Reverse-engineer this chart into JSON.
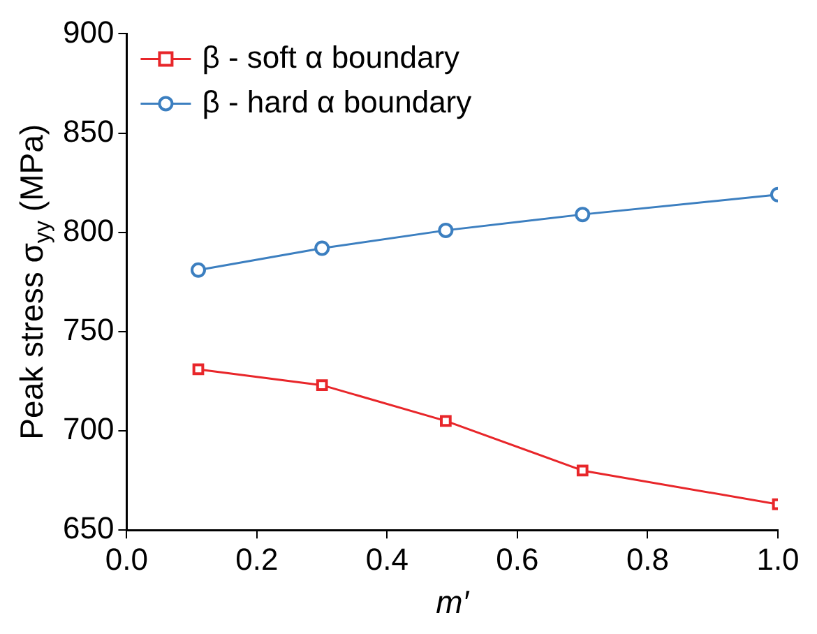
{
  "chart_data": {
    "type": "line",
    "xlabel": "m′",
    "ylabel": "Peak stress σ$_{yy}$ (MPa)",
    "x": [
      0.11,
      0.3,
      0.49,
      0.7,
      1.0
    ],
    "series": [
      {
        "name": "β - soft α boundary",
        "color": "#e8262a",
        "marker": "square",
        "values": [
          731,
          723,
          705,
          680,
          663
        ]
      },
      {
        "name": "β - hard α boundary",
        "color": "#3c7fc0",
        "marker": "circle",
        "values": [
          781,
          792,
          801,
          809,
          819
        ]
      }
    ],
    "xlim": [
      0,
      1
    ],
    "xticks": [
      {
        "value": 0,
        "label": "0.0"
      },
      {
        "value": 0.2,
        "label": "0.2"
      },
      {
        "value": 0.4,
        "label": "0.4"
      },
      {
        "value": 0.6,
        "label": "0.6"
      },
      {
        "value": 0.8,
        "label": "0.8"
      },
      {
        "value": 1,
        "label": "1.0"
      }
    ],
    "ylim": [
      650,
      900
    ],
    "yticks": [
      650,
      700,
      750,
      800,
      850,
      900
    ],
    "legend": "top left",
    "grid": false,
    "line_style": "solid"
  }
}
